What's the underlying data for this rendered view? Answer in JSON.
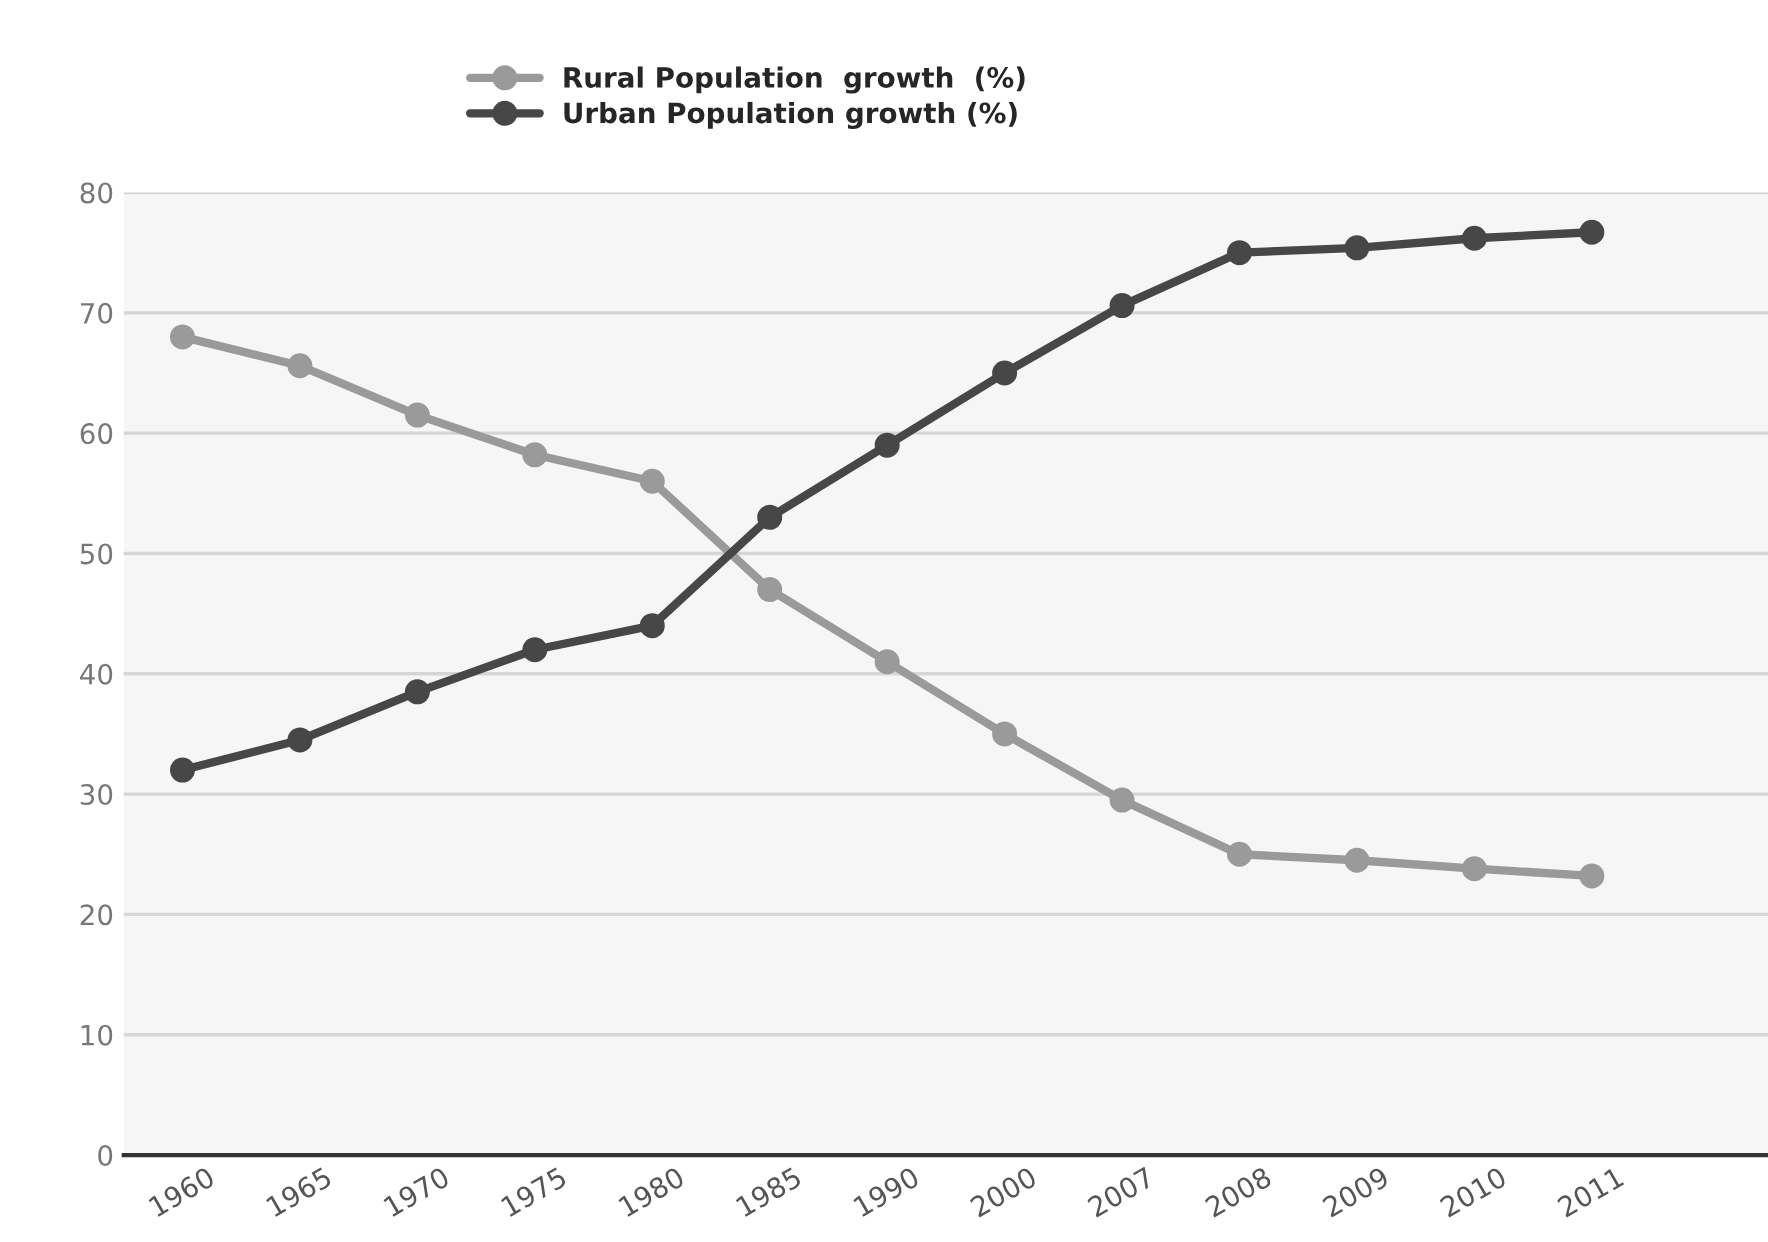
{
  "chart_data": {
    "type": "line",
    "categories": [
      "1960",
      "1965",
      "1970",
      "1975",
      "1980",
      "1985",
      "1990",
      "2000",
      "2007",
      "2008",
      "2009",
      "2010",
      "2011"
    ],
    "series": [
      {
        "name": "Rural Population  growth  (%)",
        "color": "#9a9a9a",
        "values": [
          68,
          65.6,
          61.5,
          58.2,
          56,
          47,
          41,
          35,
          29.5,
          25,
          24.5,
          23.8,
          23.2
        ]
      },
      {
        "name": "Urban Population growth (%)",
        "color": "#474747",
        "values": [
          32,
          34.5,
          38.5,
          42,
          44,
          53,
          59,
          65,
          70.6,
          75,
          75.4,
          76.2,
          76.7
        ]
      }
    ],
    "ylim": [
      0,
      80
    ],
    "yticks": [
      0,
      10,
      20,
      30,
      40,
      50,
      60,
      70,
      80
    ],
    "grid": "y",
    "legend": "top",
    "marker": "circle",
    "line_style": "solid"
  }
}
